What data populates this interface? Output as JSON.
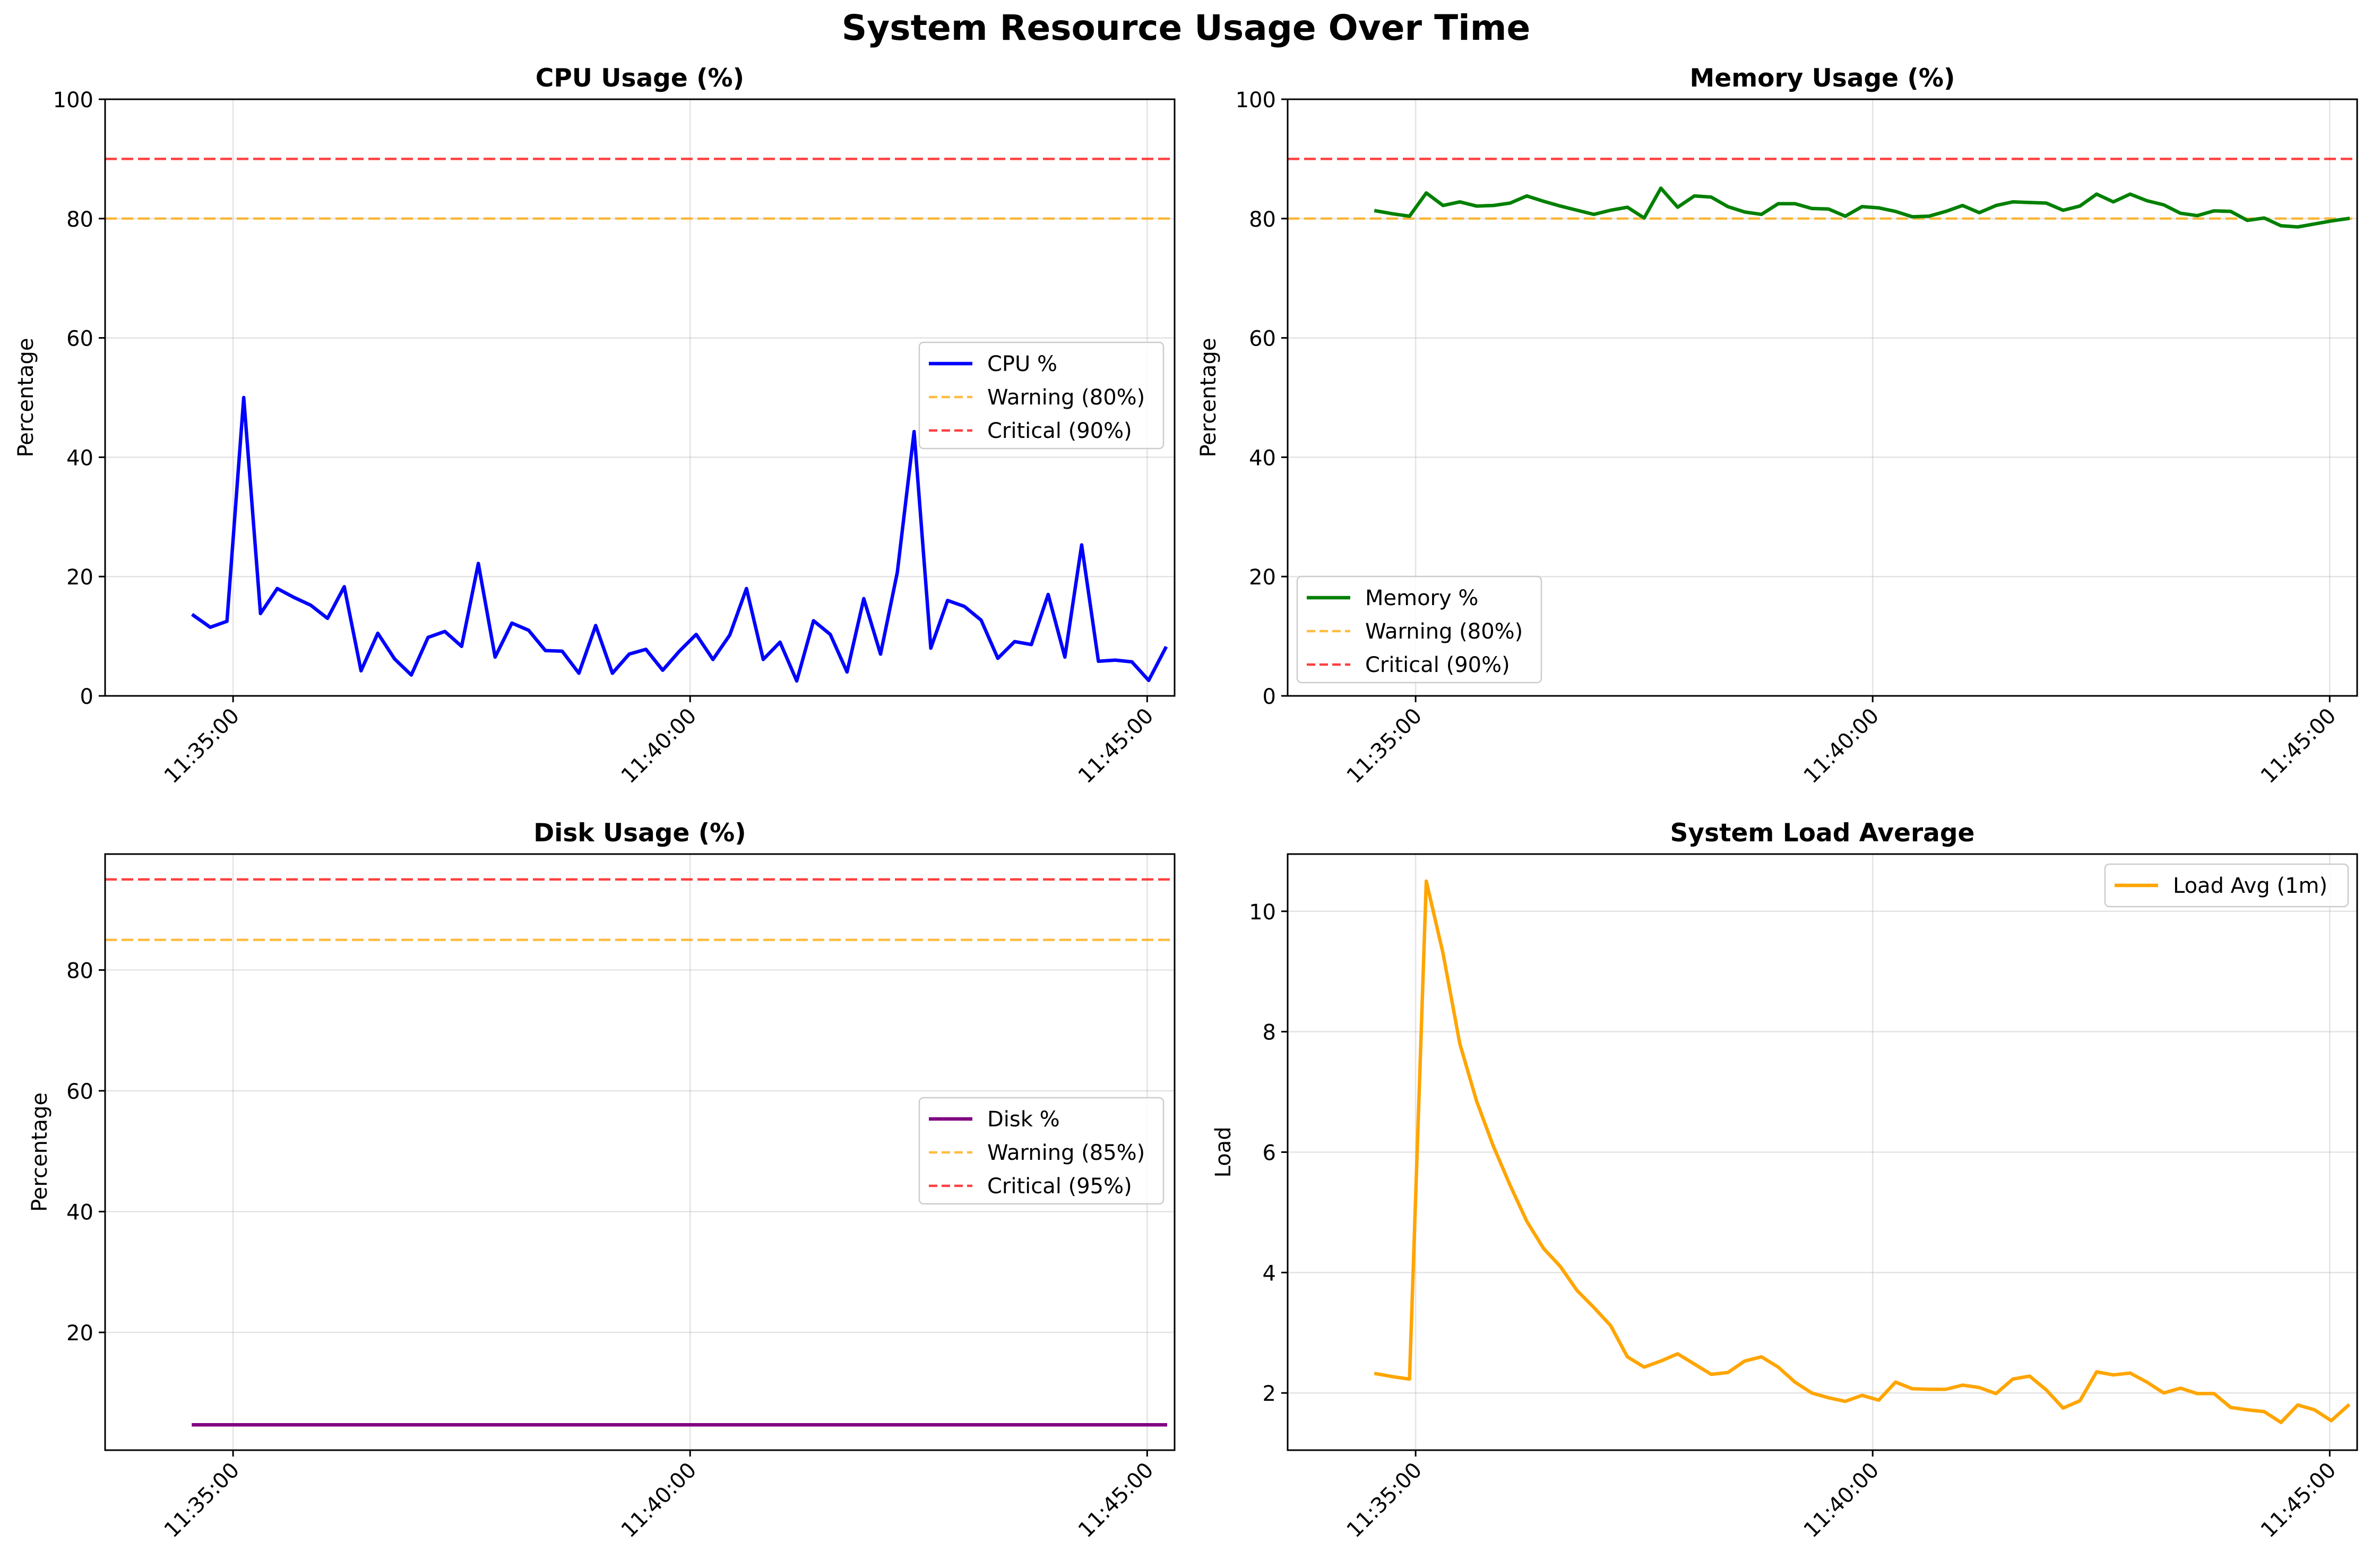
{
  "title": "System Resource Usage Over Time",
  "colors": {
    "cpu": "#0000ff",
    "memory": "#008000",
    "disk": "#800080",
    "load": "#ffa500",
    "warning": "#ffa500",
    "critical": "#ff0000",
    "grid": "#b0b0b0"
  },
  "x_ticks": [
    "11:35:00",
    "11:40:00",
    "11:45:00"
  ],
  "chart_data": [
    {
      "type": "line",
      "title": "CPU Usage (%)",
      "ylabel": "Percentage",
      "xlabel": "",
      "ylim": [
        0,
        100
      ],
      "yticks": [
        0,
        20,
        40,
        60,
        80,
        100
      ],
      "grid": true,
      "legend": "center-right",
      "x_start": "11:34:34",
      "x_step_seconds": 11,
      "series": [
        {
          "name": "CPU %",
          "color": "#0000ff",
          "values": [
            13.5,
            11.5,
            12.5,
            50,
            13.8,
            18,
            16.5,
            15.2,
            13,
            18.3,
            4.2,
            10.5,
            6.2,
            3.5,
            9.8,
            10.8,
            8.3,
            22.2,
            6.5,
            12.2,
            11,
            7.6,
            7.5,
            3.8,
            11.8,
            3.8,
            7,
            7.8,
            4.3,
            7.5,
            10.3,
            6.1,
            10.2,
            18,
            6.1,
            9,
            2.5,
            12.6,
            10.3,
            4,
            16.3,
            7,
            20.7,
            44.3,
            8,
            16,
            15,
            12.7,
            6.3,
            9.1,
            8.6,
            17,
            6.5,
            25.3,
            5.8,
            6,
            5.7,
            2.6,
            8
          ]
        }
      ],
      "thresholds": [
        {
          "name": "Warning (80%)",
          "value": 80,
          "color": "#ffa500"
        },
        {
          "name": "Critical (90%)",
          "value": 90,
          "color": "#ff0000"
        }
      ]
    },
    {
      "type": "line",
      "title": "Memory Usage (%)",
      "ylabel": "Percentage",
      "xlabel": "",
      "ylim": [
        0,
        100
      ],
      "yticks": [
        0,
        20,
        40,
        60,
        80,
        100
      ],
      "grid": true,
      "legend": "lower-left",
      "x_start": "11:34:34",
      "x_step_seconds": 11,
      "series": [
        {
          "name": "Memory %",
          "color": "#008000",
          "values": [
            81.3,
            80.8,
            80.4,
            84.3,
            82.2,
            82.8,
            82.1,
            82.2,
            82.6,
            83.8,
            82.9,
            82.1,
            81.4,
            80.7,
            81.4,
            81.9,
            80.1,
            85.1,
            81.9,
            83.8,
            83.6,
            82,
            81.1,
            80.7,
            82.5,
            82.5,
            81.7,
            81.6,
            80.4,
            82,
            81.8,
            81.2,
            80.3,
            80.4,
            81.2,
            82.2,
            81,
            82.2,
            82.8,
            82.7,
            82.6,
            81.4,
            82.1,
            84.1,
            82.8,
            84.1,
            83,
            82.3,
            80.9,
            80.5,
            81.3,
            81.2,
            79.7,
            80.1,
            78.8,
            78.6,
            79.1,
            79.6,
            80
          ]
        }
      ],
      "thresholds": [
        {
          "name": "Warning (80%)",
          "value": 80,
          "color": "#ffa500"
        },
        {
          "name": "Critical (90%)",
          "value": 90,
          "color": "#ff0000"
        }
      ]
    },
    {
      "type": "line",
      "title": "Disk Usage (%)",
      "ylabel": "Percentage",
      "xlabel": "",
      "ylim": [
        0.5,
        99.2
      ],
      "yticks": [
        20,
        40,
        60,
        80
      ],
      "grid": true,
      "legend": "center-right",
      "x_start": "11:34:34",
      "x_step_seconds": 11,
      "series": [
        {
          "name": "Disk %",
          "color": "#800080",
          "values": [
            4.7,
            4.7,
            4.7,
            4.7,
            4.7,
            4.7,
            4.7,
            4.7,
            4.7,
            4.7,
            4.7,
            4.7,
            4.7,
            4.7,
            4.7,
            4.7,
            4.7,
            4.7,
            4.7,
            4.7,
            4.7,
            4.7,
            4.7,
            4.7,
            4.7,
            4.7,
            4.7,
            4.7,
            4.7,
            4.7,
            4.7,
            4.7,
            4.7,
            4.7,
            4.7,
            4.7,
            4.7,
            4.7,
            4.7,
            4.7,
            4.7,
            4.7,
            4.7,
            4.7,
            4.7,
            4.7,
            4.7,
            4.7,
            4.7,
            4.7,
            4.7,
            4.7,
            4.7,
            4.7,
            4.7,
            4.7,
            4.7,
            4.7,
            4.7
          ]
        }
      ],
      "thresholds": [
        {
          "name": "Warning (85%)",
          "value": 85,
          "color": "#ffa500"
        },
        {
          "name": "Critical (95%)",
          "value": 95,
          "color": "#ff0000"
        }
      ]
    },
    {
      "type": "line",
      "title": "System Load Average",
      "ylabel": "Load",
      "xlabel": "",
      "ylim": [
        1.05,
        10.95
      ],
      "yticks": [
        2,
        4,
        6,
        8,
        10
      ],
      "grid": true,
      "legend": "top-right",
      "x_start": "11:34:34",
      "x_step_seconds": 11,
      "series": [
        {
          "name": "Load Avg (1m)",
          "color": "#ffa500",
          "values": [
            2.32,
            2.27,
            2.23,
            10.5,
            9.3,
            7.8,
            6.85,
            6.1,
            5.45,
            4.85,
            4.4,
            4.1,
            3.7,
            3.42,
            3.12,
            2.6,
            2.43,
            2.53,
            2.65,
            2.48,
            2.31,
            2.34,
            2.53,
            2.6,
            2.43,
            2.18,
            2,
            1.92,
            1.86,
            1.96,
            1.88,
            2.18,
            2.07,
            2.06,
            2.06,
            2.13,
            2.09,
            1.99,
            2.23,
            2.28,
            2.05,
            1.75,
            1.87,
            2.35,
            2.3,
            2.33,
            2.18,
            2,
            2.08,
            1.99,
            1.99,
            1.76,
            1.72,
            1.69,
            1.51,
            1.8,
            1.72,
            1.54,
            1.79
          ]
        }
      ],
      "thresholds": []
    }
  ]
}
